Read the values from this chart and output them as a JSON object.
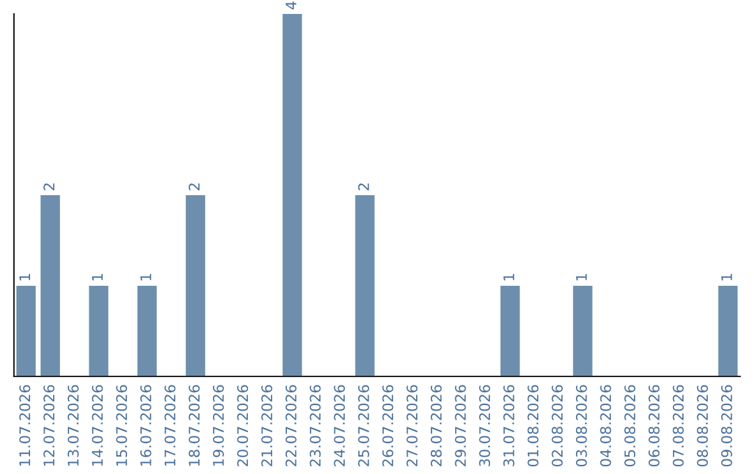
{
  "chart_data": {
    "type": "bar",
    "categories": [
      "11.07.2026",
      "12.07.2026",
      "13.07.2026",
      "14.07.2026",
      "15.07.2026",
      "16.07.2026",
      "17.07.2026",
      "18.07.2026",
      "19.07.2026",
      "20.07.2026",
      "21.07.2026",
      "22.07.2026",
      "23.07.2026",
      "24.07.2026",
      "25.07.2026",
      "26.07.2026",
      "27.07.2026",
      "28.07.2026",
      "29.07.2026",
      "30.07.2026",
      "31.07.2026",
      "01.08.2026",
      "02.08.2026",
      "03.08.2026",
      "04.08.2026",
      "05.08.2026",
      "06.08.2026",
      "07.08.2026",
      "08.08.2026",
      "09.08.2026"
    ],
    "values": [
      1,
      2,
      0,
      1,
      0,
      1,
      0,
      2,
      0,
      0,
      0,
      4,
      0,
      0,
      2,
      0,
      0,
      0,
      0,
      0,
      1,
      0,
      0,
      1,
      0,
      0,
      0,
      0,
      0,
      1
    ],
    "value_labels": [
      "1",
      "2",
      null,
      "1",
      null,
      "1",
      null,
      "2",
      null,
      null,
      null,
      "4",
      null,
      null,
      "2",
      null,
      null,
      null,
      null,
      null,
      "1",
      null,
      null,
      "1",
      null,
      null,
      null,
      null,
      null,
      "1"
    ],
    "color": "#6d8fad",
    "grid": false,
    "legend": false
  }
}
